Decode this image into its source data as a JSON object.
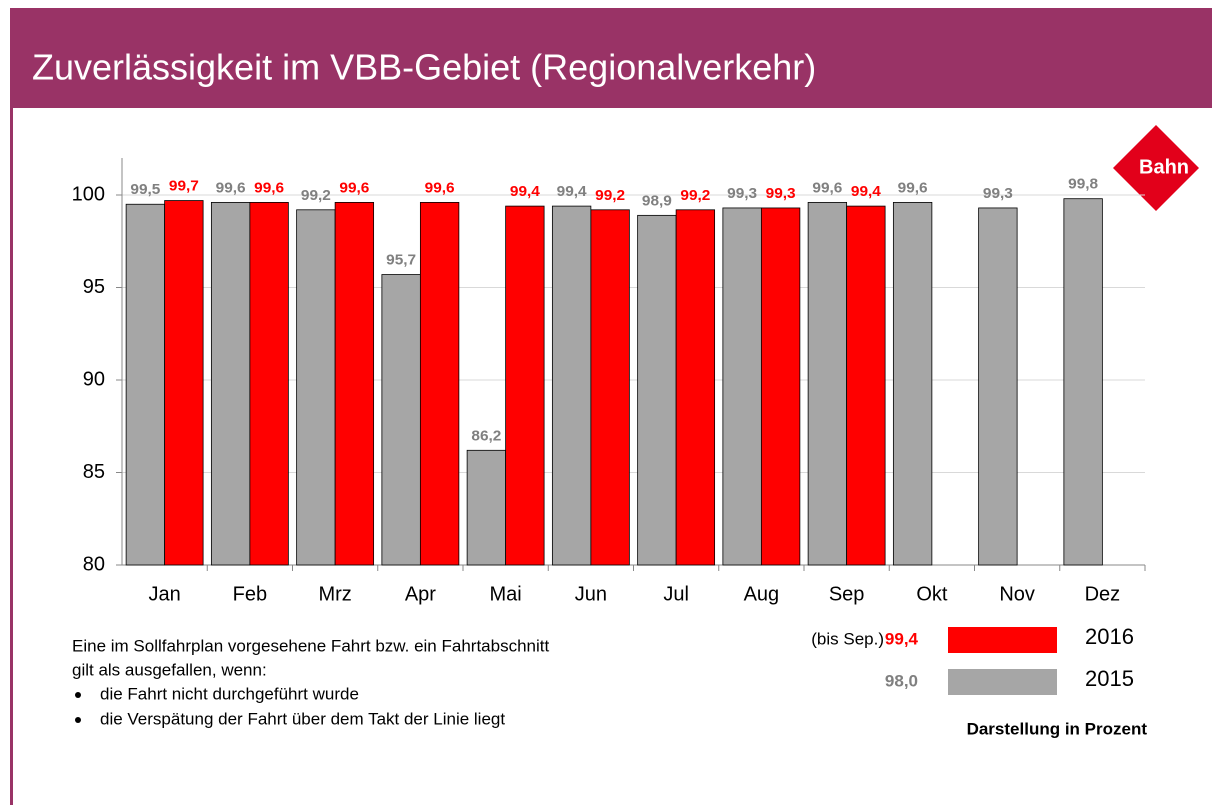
{
  "title": "Zuverlässigkeit im VBB-Gebiet (Regionalverkehr)",
  "logo": "Bahn",
  "chart_data": {
    "type": "bar",
    "categories": [
      "Jan",
      "Feb",
      "Mrz",
      "Apr",
      "Mai",
      "Jun",
      "Jul",
      "Aug",
      "Sep",
      "Okt",
      "Nov",
      "Dez"
    ],
    "series": [
      {
        "name": "2015",
        "color": "#a6a6a6",
        "label_color": "#808080",
        "values": [
          99.5,
          99.6,
          99.2,
          95.7,
          86.2,
          99.4,
          98.9,
          99.3,
          99.6,
          99.6,
          99.3,
          99.8
        ],
        "value_labels": [
          "99,5",
          "99,6",
          "99,2",
          "95,7",
          "86,2",
          "99,4",
          "98,9",
          "99,3",
          "99,6",
          "99,6",
          "99,3",
          "99,8"
        ],
        "average": 98.0,
        "average_label": "98,0"
      },
      {
        "name": "2016",
        "color": "#ff0000",
        "label_color": "#ff0000",
        "values": [
          99.7,
          99.6,
          99.6,
          99.6,
          99.4,
          99.2,
          99.2,
          99.3,
          99.4,
          null,
          null,
          null
        ],
        "value_labels": [
          "99,7",
          "99,6",
          "99,6",
          "99,6",
          "99,4",
          "99,2",
          "99,2",
          "99,3",
          "99,4",
          null,
          null,
          null
        ],
        "average": 99.4,
        "average_label": "99,4",
        "average_note": "(bis Sep.)"
      }
    ],
    "ylim": [
      80,
      102
    ],
    "yticks": [
      80,
      85,
      90,
      95,
      100
    ],
    "grid": true,
    "unit_note": "Darstellung in Prozent"
  },
  "footnote": {
    "intro": [
      "Eine im Sollfahrplan vorgesehene Fahrt bzw. ein Fahrtabschnitt",
      "gilt als ausgefallen, wenn:"
    ],
    "bullets": [
      "die Fahrt nicht durchgeführt wurde",
      "die Verspätung der Fahrt über dem Takt der Linie liegt"
    ]
  }
}
